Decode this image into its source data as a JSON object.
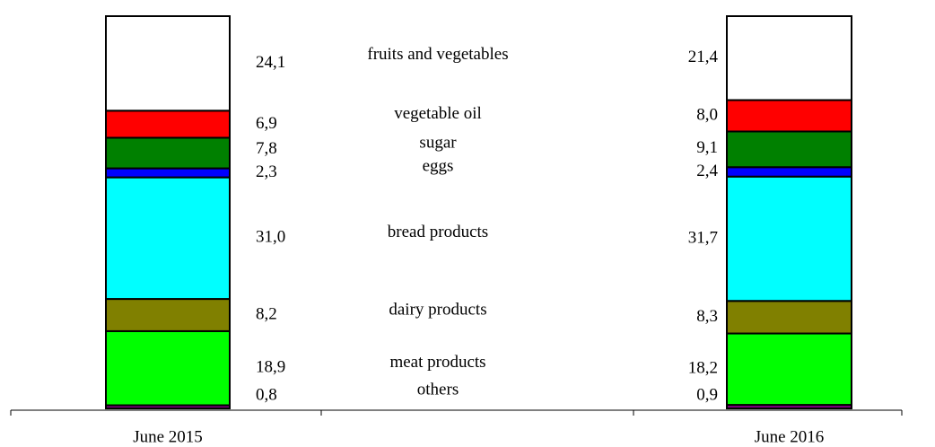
{
  "chart_data": {
    "type": "stacked_bar",
    "categories": [
      "June 2015",
      "June 2016"
    ],
    "ylim": [
      0,
      100
    ],
    "series": [
      {
        "name": "others",
        "color": "#800080",
        "values": [
          0.8,
          0.9
        ],
        "value_labels": [
          "0,8",
          "0,9"
        ]
      },
      {
        "name": "meat products",
        "color": "#00ff00",
        "values": [
          18.9,
          18.2
        ],
        "value_labels": [
          "18,9",
          "18,2"
        ]
      },
      {
        "name": "dairy products",
        "color": "#808000",
        "values": [
          8.2,
          8.3
        ],
        "value_labels": [
          "8,2",
          "8,3"
        ]
      },
      {
        "name": "bread products",
        "color": "#00ffff",
        "values": [
          31.0,
          31.7
        ],
        "value_labels": [
          "31,0",
          "31,7"
        ]
      },
      {
        "name": "eggs",
        "color": "#0000ff",
        "values": [
          2.3,
          2.4
        ],
        "value_labels": [
          "2,3",
          "2,4"
        ]
      },
      {
        "name": "sugar",
        "color": "#008000",
        "values": [
          7.8,
          9.1
        ],
        "value_labels": [
          "7,8",
          "9,1"
        ]
      },
      {
        "name": "vegetable oil",
        "color": "#ff0000",
        "values": [
          6.9,
          8.0
        ],
        "value_labels": [
          "6,9",
          "8,0"
        ]
      },
      {
        "name": "fruits and vegetables",
        "color": "#ffffff",
        "values": [
          24.1,
          21.4
        ],
        "value_labels": [
          "24,1",
          "21,4"
        ]
      }
    ]
  }
}
